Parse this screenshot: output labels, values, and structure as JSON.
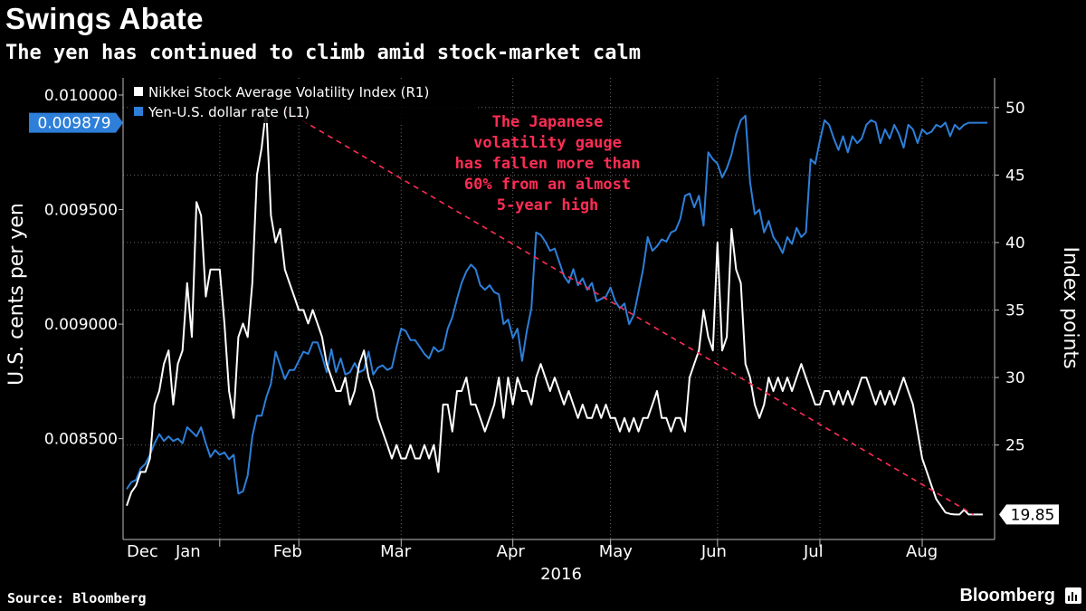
{
  "title": "Swings Abate",
  "subtitle": "The yen has continued to climb amid stock-market calm",
  "source": "Source: Bloomberg",
  "brand": "Bloomberg",
  "colors": {
    "background": "#000000",
    "yen": "#2d7fd9",
    "nikkei": "#ffffff",
    "annotation": "#ff2d55",
    "grid": "#6a6a6a"
  },
  "chart_data": {
    "type": "line",
    "xlabel": "2016",
    "ylabel_left": "U.S. cents per yen",
    "ylabel_right": "Index points",
    "x_tick_labels": [
      "Dec",
      "Jan",
      "Feb",
      "Mar",
      "Apr",
      "May",
      "Jun",
      "Jul",
      "Aug"
    ],
    "y_left_range": [
      0.00806,
      0.010075
    ],
    "y_left_ticks": [
      "0.008500",
      "0.009000",
      "0.009500",
      "0.010000"
    ],
    "y_right_range": [
      18,
      52.2
    ],
    "y_right_ticks": [
      "25",
      "30",
      "35",
      "40",
      "45",
      "50"
    ],
    "grid": true,
    "legend_position": "top-left",
    "legend": [
      "Nikkei Stock Average Volatility Index  (R1)",
      "Yen-U.S. dollar rate (L1)"
    ],
    "annotation": [
      "The Japanese",
      "volatility gauge",
      "has fallen more than",
      "60% from an almost",
      "5-year high"
    ],
    "last_value_left": "0.009879",
    "last_value_right": "19.85",
    "trendline": {
      "from_index": 34,
      "from_value": 49.8,
      "to_index": 182,
      "to_value": 19.85
    },
    "series": [
      {
        "name": "Yen-U.S. dollar rate (L1)",
        "axis": "left",
        "values": [
          0.00828,
          0.00831,
          0.00832,
          0.00837,
          0.00839,
          0.00843,
          0.00848,
          0.00852,
          0.00849,
          0.00851,
          0.00849,
          0.0085,
          0.00848,
          0.00855,
          0.00853,
          0.00851,
          0.00855,
          0.00848,
          0.00842,
          0.00845,
          0.00843,
          0.00844,
          0.00841,
          0.00843,
          0.00826,
          0.00827,
          0.00834,
          0.00851,
          0.0086,
          0.0086,
          0.00868,
          0.00874,
          0.00888,
          0.00882,
          0.00876,
          0.0088,
          0.0088,
          0.00884,
          0.00888,
          0.00887,
          0.00892,
          0.00892,
          0.00886,
          0.00879,
          0.00889,
          0.00879,
          0.00885,
          0.00878,
          0.00879,
          0.00883,
          0.00879,
          0.0088,
          0.00888,
          0.00878,
          0.00881,
          0.00882,
          0.0088,
          0.00881,
          0.0089,
          0.00898,
          0.00897,
          0.00893,
          0.00893,
          0.0089,
          0.00887,
          0.00885,
          0.0089,
          0.00888,
          0.00889,
          0.00898,
          0.00903,
          0.00911,
          0.00918,
          0.00923,
          0.00926,
          0.00924,
          0.00917,
          0.00915,
          0.00917,
          0.00914,
          0.00913,
          0.009,
          0.00902,
          0.00894,
          0.00898,
          0.00884,
          0.00897,
          0.00907,
          0.0094,
          0.00939,
          0.00936,
          0.00932,
          0.00933,
          0.00927,
          0.00921,
          0.00918,
          0.00924,
          0.00917,
          0.0092,
          0.00915,
          0.00918,
          0.0091,
          0.00911,
          0.00912,
          0.00916,
          0.0091,
          0.00907,
          0.00909,
          0.009,
          0.00904,
          0.00914,
          0.00924,
          0.00938,
          0.00932,
          0.00934,
          0.00937,
          0.00936,
          0.0094,
          0.00941,
          0.00946,
          0.00956,
          0.00957,
          0.00951,
          0.00956,
          0.00943,
          0.00975,
          0.00972,
          0.0097,
          0.00964,
          0.00968,
          0.00974,
          0.00983,
          0.00989,
          0.00991,
          0.00962,
          0.00948,
          0.0095,
          0.0094,
          0.00945,
          0.00938,
          0.00935,
          0.00931,
          0.00938,
          0.00935,
          0.00942,
          0.00938,
          0.0094,
          0.00972,
          0.0097,
          0.0098,
          0.00989,
          0.00987,
          0.00981,
          0.00976,
          0.00982,
          0.00975,
          0.00982,
          0.00979,
          0.00981,
          0.00987,
          0.00989,
          0.00988,
          0.00979,
          0.00985,
          0.00981,
          0.00987,
          0.00983,
          0.00977,
          0.00987,
          0.00985,
          0.00979,
          0.00985,
          0.00983,
          0.00984,
          0.00987,
          0.00986,
          0.00988,
          0.00982,
          0.00987,
          0.00985,
          0.00987,
          0.009879,
          0.009879,
          0.009879,
          0.009879,
          0.009879
        ]
      },
      {
        "name": "Nikkei Stock Average Volatility Index  (R1)",
        "axis": "right",
        "values": [
          20.5,
          21.5,
          22,
          23,
          23,
          24,
          28,
          29,
          31,
          32,
          28,
          31,
          32,
          37,
          33,
          43,
          42,
          36,
          38,
          38,
          38,
          34,
          29,
          27,
          33,
          34,
          33,
          37,
          45,
          47,
          50,
          42,
          40,
          41,
          38,
          37,
          36,
          35,
          35,
          34,
          35,
          34,
          33,
          31,
          30,
          29,
          29,
          30,
          28,
          29,
          31,
          32,
          30,
          29,
          27,
          26,
          25,
          24,
          25,
          24,
          24,
          25,
          24,
          24,
          25,
          24,
          25,
          23,
          28,
          28,
          26,
          29,
          29,
          30,
          28,
          28,
          27,
          26,
          27,
          28,
          30,
          27,
          30,
          28,
          30,
          29,
          29,
          28,
          30,
          31,
          30,
          29,
          30,
          29,
          28,
          29,
          28,
          27,
          28,
          27,
          27,
          28,
          27,
          28,
          27,
          27,
          26,
          27,
          26,
          27,
          26,
          27,
          27,
          28,
          29,
          27,
          27,
          26,
          27,
          27,
          26,
          30,
          31,
          32,
          35,
          33,
          32,
          40,
          32,
          33,
          41,
          38,
          37,
          31,
          30,
          28,
          27,
          28,
          30,
          29,
          30,
          29,
          30,
          29,
          30,
          31,
          30,
          29,
          28,
          28,
          29,
          29,
          28,
          29,
          28,
          29,
          28,
          29,
          30,
          30,
          29,
          28,
          29,
          28,
          29,
          28,
          29,
          30,
          29,
          28,
          26,
          24,
          23,
          22,
          21,
          20.5,
          20,
          19.9,
          19.85,
          19.85,
          20.2,
          19.85,
          19.85,
          19.85,
          19.85
        ]
      }
    ]
  }
}
